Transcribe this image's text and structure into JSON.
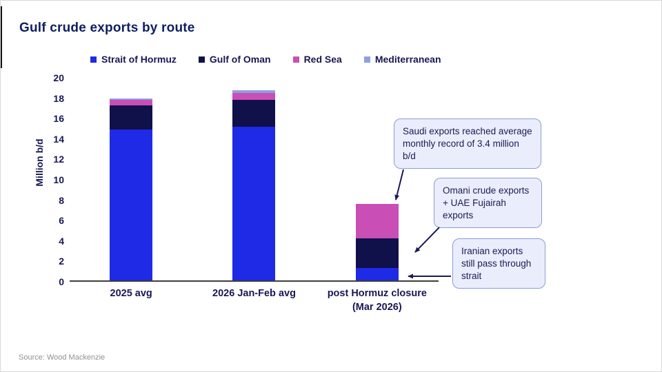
{
  "slide": {
    "title": "Gulf crude exports by route",
    "source": "Source: Wood Mackenzie"
  },
  "legend": {
    "items": [
      {
        "label": "Strait of Hormuz",
        "color": "#1E2AE6"
      },
      {
        "label": "Gulf of Oman",
        "color": "#10104A"
      },
      {
        "label": "Red Sea",
        "color": "#C94EB6"
      },
      {
        "label": "Mediterranean",
        "color": "#8FA0E0"
      }
    ]
  },
  "chart_data": {
    "type": "bar",
    "stacked": true,
    "title": "Gulf crude exports by route",
    "xlabel": "",
    "ylabel": "Million b/d",
    "ylim": [
      0,
      20
    ],
    "ytick_step": 2,
    "grid": false,
    "legend_position": "top",
    "categories": [
      "2025 avg",
      "2026 Jan-Feb avg",
      "post Hormuz closure\n(Mar 2026)"
    ],
    "series": [
      {
        "name": "Strait of Hormuz",
        "color": "#1E2AE6",
        "values": [
          14.8,
          15.1,
          1.2
        ]
      },
      {
        "name": "Gulf of Oman",
        "color": "#10104A",
        "values": [
          2.4,
          2.6,
          2.9
        ]
      },
      {
        "name": "Red Sea",
        "color": "#C94EB6",
        "values": [
          0.5,
          0.7,
          3.4
        ]
      },
      {
        "name": "Mediterranean",
        "color": "#8FA0E0",
        "values": [
          0.15,
          0.25,
          0
        ]
      }
    ]
  },
  "annotations": [
    {
      "text": "Saudi exports reached average monthly record of 3.4 million b/d"
    },
    {
      "text": "Omani crude exports + UAE Fujairah exports"
    },
    {
      "text": "Iranian exports still pass through strait"
    }
  ]
}
